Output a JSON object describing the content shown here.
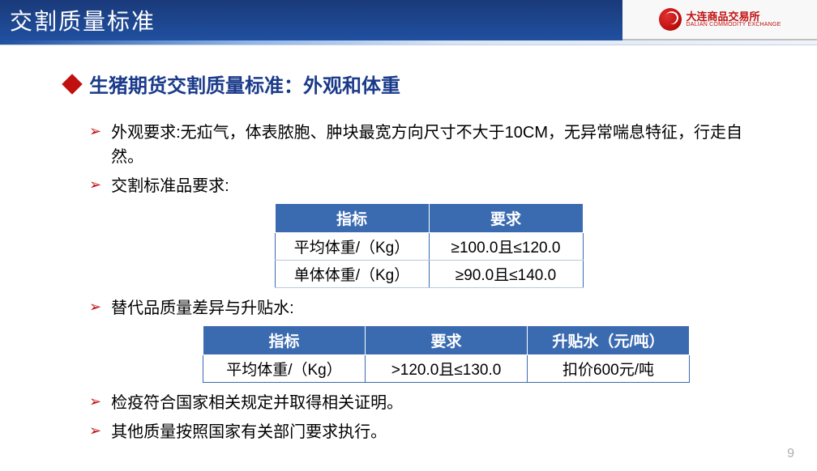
{
  "header": {
    "title": "交割质量标准",
    "logo_text": "大连商品交易所",
    "logo_sub": "DALIAN COMMODITY EXCHANGE"
  },
  "subtitle": "生猪期货交割质量标准：外观和体重",
  "bullets": {
    "b1": "外观要求:无疝气，体表脓胞、肿块最宽方向尺寸不大于10CM，无异常喘息特征，行走自然。",
    "b2": "交割标准品要求:",
    "b3": "替代品质量差异与升贴水:",
    "b4": "检疫符合国家相关规定并取得相关证明。",
    "b5": "其他质量按照国家有关部门要求执行。"
  },
  "table1": {
    "h1": "指标",
    "h2": "要求",
    "r1c1": "平均体重/（Kg）",
    "r1c2": "≥100.0且≤120.0",
    "r2c1": "单体体重/（Kg）",
    "r2c2": "≥90.0且≤140.0"
  },
  "table2": {
    "h1": "指标",
    "h2": "要求",
    "h3": "升贴水（元/吨）",
    "r1c1": "平均体重/（Kg）",
    "r1c2": ">120.0且≤130.0",
    "r1c3": "扣价600元/吨"
  },
  "page_number": "9",
  "colors": {
    "header_bg": "#2050a0",
    "accent_red": "#c01010",
    "table_header": "#3a6ab0",
    "subtitle": "#1a3a8a"
  }
}
